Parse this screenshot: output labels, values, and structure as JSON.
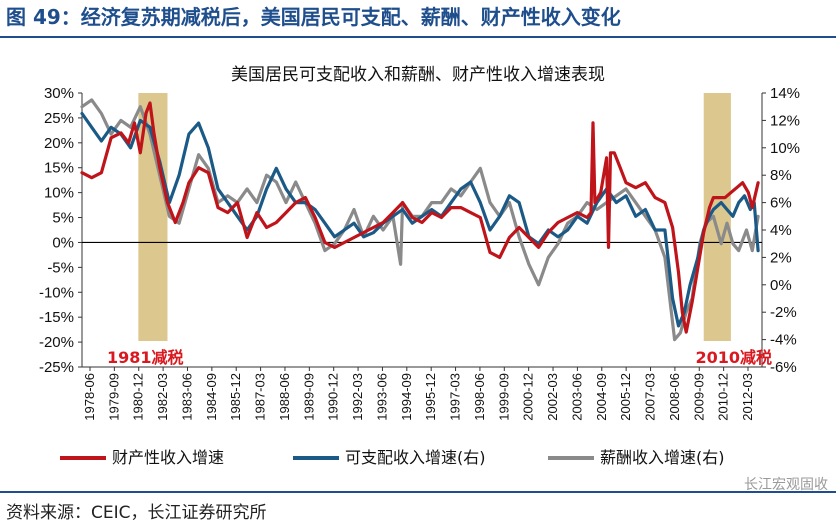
{
  "figure": {
    "title": "图 49：经济复苏期减税后，美国居民可支配、薪酬、财产性收入变化",
    "source": "资料来源：CEIC，长江证券研究所",
    "watermark": "长江宏观固收"
  },
  "colors": {
    "property": "#c0141b",
    "disposable": "#1b5a86",
    "salary": "#8a8a8a",
    "shade": "#dcc88f",
    "title": "#1f4e8c"
  },
  "chart_data": {
    "type": "line",
    "title": "美国居民可支配收入和薪酬、财产性收入增速表现",
    "x_labels": [
      "1978-06",
      "1979-09",
      "1980-12",
      "1982-03",
      "1983-06",
      "1984-09",
      "1985-12",
      "1987-03",
      "1988-06",
      "1989-09",
      "1990-12",
      "1992-03",
      "1993-06",
      "1994-09",
      "1995-12",
      "1997-03",
      "1998-06",
      "1999-09",
      "2000-12",
      "2002-03",
      "2003-06",
      "2004-09",
      "2005-12",
      "2007-03",
      "2008-06",
      "2009-09",
      "2010-12",
      "2012-03"
    ],
    "x_range": [
      1978.5,
      2013.5
    ],
    "left_axis": {
      "min": -25,
      "max": 30,
      "step": 5,
      "ticks": [
        "-25%",
        "-20%",
        "-15%",
        "-10%",
        "-5%",
        "0%",
        "5%",
        "10%",
        "15%",
        "20%",
        "25%",
        "30%"
      ]
    },
    "right_axis": {
      "min": -6,
      "max": 14,
      "step": 2,
      "ticks": [
        "-6%",
        "-4%",
        "-2%",
        "0%",
        "2%",
        "4%",
        "6%",
        "8%",
        "10%",
        "12%",
        "14%"
      ]
    },
    "shaded_periods": [
      {
        "start": 1981.4,
        "end": 1982.9,
        "label": "1981减税"
      },
      {
        "start": 2010.5,
        "end": 2011.9,
        "label": "2010减税"
      }
    ],
    "series": [
      {
        "name": "财产性收入增速",
        "axis": "left",
        "x": [
          1978.5,
          1979.0,
          1979.5,
          1980.0,
          1980.5,
          1980.9,
          1981.2,
          1981.5,
          1981.8,
          1982.0,
          1982.2,
          1982.5,
          1982.9,
          1983.3,
          1983.7,
          1984.0,
          1984.5,
          1985.0,
          1985.5,
          1986.0,
          1986.5,
          1987.0,
          1987.5,
          1988.0,
          1988.5,
          1989.0,
          1989.5,
          1990.0,
          1990.5,
          1991.0,
          1991.5,
          1992.0,
          1992.5,
          1993.0,
          1993.5,
          1994.0,
          1994.5,
          1995.0,
          1995.5,
          1996.0,
          1996.5,
          1997.0,
          1997.5,
          1998.0,
          1998.5,
          1999.0,
          1999.5,
          2000.0,
          2000.5,
          2001.0,
          2001.5,
          2002.0,
          2002.5,
          2003.0,
          2003.5,
          2004.0,
          2004.5,
          2004.7,
          2004.8,
          2004.9,
          2005.2,
          2005.5,
          2005.6,
          2005.7,
          2005.9,
          2006.2,
          2006.5,
          2007.0,
          2007.5,
          2008.0,
          2008.5,
          2008.9,
          2009.2,
          2009.4,
          2009.6,
          2009.9,
          2010.2,
          2010.5,
          2010.8,
          2011.0,
          2011.3,
          2011.6,
          2011.9,
          2012.2,
          2012.5,
          2012.8,
          2013.0,
          2013.3
        ],
        "y": [
          14,
          13,
          14,
          21,
          22,
          20,
          24,
          18,
          26,
          28,
          22,
          15,
          8,
          4,
          8,
          12,
          15,
          14,
          7,
          6,
          8,
          1,
          6,
          3,
          4,
          6,
          8,
          9,
          5,
          0,
          -1,
          0,
          1,
          2,
          3,
          4,
          6,
          8,
          5,
          4,
          6,
          5,
          7,
          7,
          6,
          5,
          -2,
          -3,
          1,
          3,
          1,
          -1,
          2,
          4,
          5,
          6,
          5,
          6,
          24,
          8,
          10,
          17,
          -1,
          18,
          18,
          15,
          12,
          11,
          12,
          9,
          8,
          3,
          -6,
          -14,
          -18,
          -12,
          -5,
          2,
          7,
          9,
          9,
          9,
          10,
          11,
          12,
          10,
          7,
          12
        ]
      },
      {
        "name": "可支配收入增速(右)",
        "axis": "right",
        "x": [
          1978.5,
          1979.0,
          1979.5,
          1980.0,
          1980.5,
          1981.0,
          1981.5,
          1982.0,
          1982.5,
          1983.0,
          1983.5,
          1984.0,
          1984.5,
          1985.0,
          1985.5,
          1986.0,
          1986.5,
          1987.0,
          1987.5,
          1988.0,
          1988.5,
          1989.0,
          1989.5,
          1990.0,
          1990.5,
          1991.0,
          1991.5,
          1992.0,
          1992.5,
          1993.0,
          1993.5,
          1994.0,
          1994.5,
          1995.0,
          1995.5,
          1996.0,
          1996.5,
          1997.0,
          1997.5,
          1998.0,
          1998.5,
          1999.0,
          1999.5,
          2000.0,
          2000.5,
          2001.0,
          2001.5,
          2002.0,
          2002.5,
          2003.0,
          2003.5,
          2004.0,
          2004.5,
          2005.0,
          2005.5,
          2006.0,
          2006.5,
          2007.0,
          2007.5,
          2008.0,
          2008.5,
          2008.9,
          2009.2,
          2009.5,
          2009.8,
          2010.2,
          2010.5,
          2010.8,
          2011.0,
          2011.4,
          2011.7,
          2012.0,
          2012.3,
          2012.6,
          2012.9,
          2013.1,
          2013.3
        ],
        "y": [
          12.5,
          11.5,
          10.5,
          11.5,
          11,
          10,
          12,
          11.5,
          9,
          6,
          8,
          11,
          11.8,
          10,
          7,
          6,
          5,
          4,
          5,
          7,
          8.5,
          7,
          6,
          6,
          5.5,
          4.5,
          3.5,
          4,
          4.5,
          3.5,
          3.8,
          4.5,
          5,
          5.5,
          4.5,
          5,
          5.5,
          5,
          6,
          7,
          7.5,
          6,
          4,
          5,
          6.5,
          6,
          3.5,
          3,
          4,
          3.5,
          4,
          5,
          4.5,
          6,
          7,
          6,
          6.5,
          5,
          5.5,
          4,
          4,
          -1,
          -3,
          -2,
          0,
          2,
          4,
          5,
          5.5,
          6,
          5.5,
          5,
          6,
          6.5,
          5.5,
          6,
          2.5
        ]
      },
      {
        "name": "薪酬收入增速(右)",
        "axis": "right",
        "x": [
          1978.5,
          1979.0,
          1979.5,
          1980.0,
          1980.5,
          1981.0,
          1981.5,
          1982.0,
          1982.5,
          1983.0,
          1983.5,
          1984.0,
          1984.5,
          1985.0,
          1985.5,
          1986.0,
          1986.5,
          1987.0,
          1987.5,
          1988.0,
          1988.5,
          1989.0,
          1989.5,
          1990.0,
          1990.5,
          1991.0,
          1991.5,
          1992.0,
          1992.5,
          1993.0,
          1993.5,
          1994.0,
          1994.5,
          1994.9,
          1995.0,
          1995.5,
          1996.0,
          1996.5,
          1997.0,
          1997.5,
          1998.0,
          1998.5,
          1999.0,
          1999.5,
          2000.0,
          2000.5,
          2001.0,
          2001.5,
          2002.0,
          2002.5,
          2003.0,
          2003.5,
          2004.0,
          2004.5,
          2005.0,
          2005.5,
          2006.0,
          2006.5,
          2007.0,
          2007.5,
          2008.0,
          2008.5,
          2009.0,
          2009.3,
          2009.6,
          2009.9,
          2010.3,
          2010.6,
          2011.0,
          2011.4,
          2011.7,
          2012.0,
          2012.3,
          2012.7,
          2013.0,
          2013.3
        ],
        "y": [
          13,
          13.5,
          12.5,
          11,
          12,
          11.5,
          13,
          11,
          8,
          5,
          4.5,
          7,
          9.5,
          8.5,
          6,
          6.5,
          6,
          7,
          6,
          8,
          7.5,
          6,
          7.5,
          6,
          4.5,
          2.5,
          3,
          4,
          5.5,
          3.5,
          5,
          4,
          5,
          1.5,
          6,
          5,
          5,
          6,
          6,
          7,
          6.5,
          7.5,
          8.5,
          6,
          5,
          6,
          3.5,
          1.5,
          0,
          2,
          3,
          4.5,
          5,
          6,
          5.5,
          6,
          6.5,
          7,
          6,
          5,
          4,
          2,
          -4,
          -3.5,
          -2,
          -1,
          3,
          4.5,
          5,
          3,
          4.5,
          3,
          2.5,
          4,
          2.5,
          5
        ]
      }
    ]
  }
}
